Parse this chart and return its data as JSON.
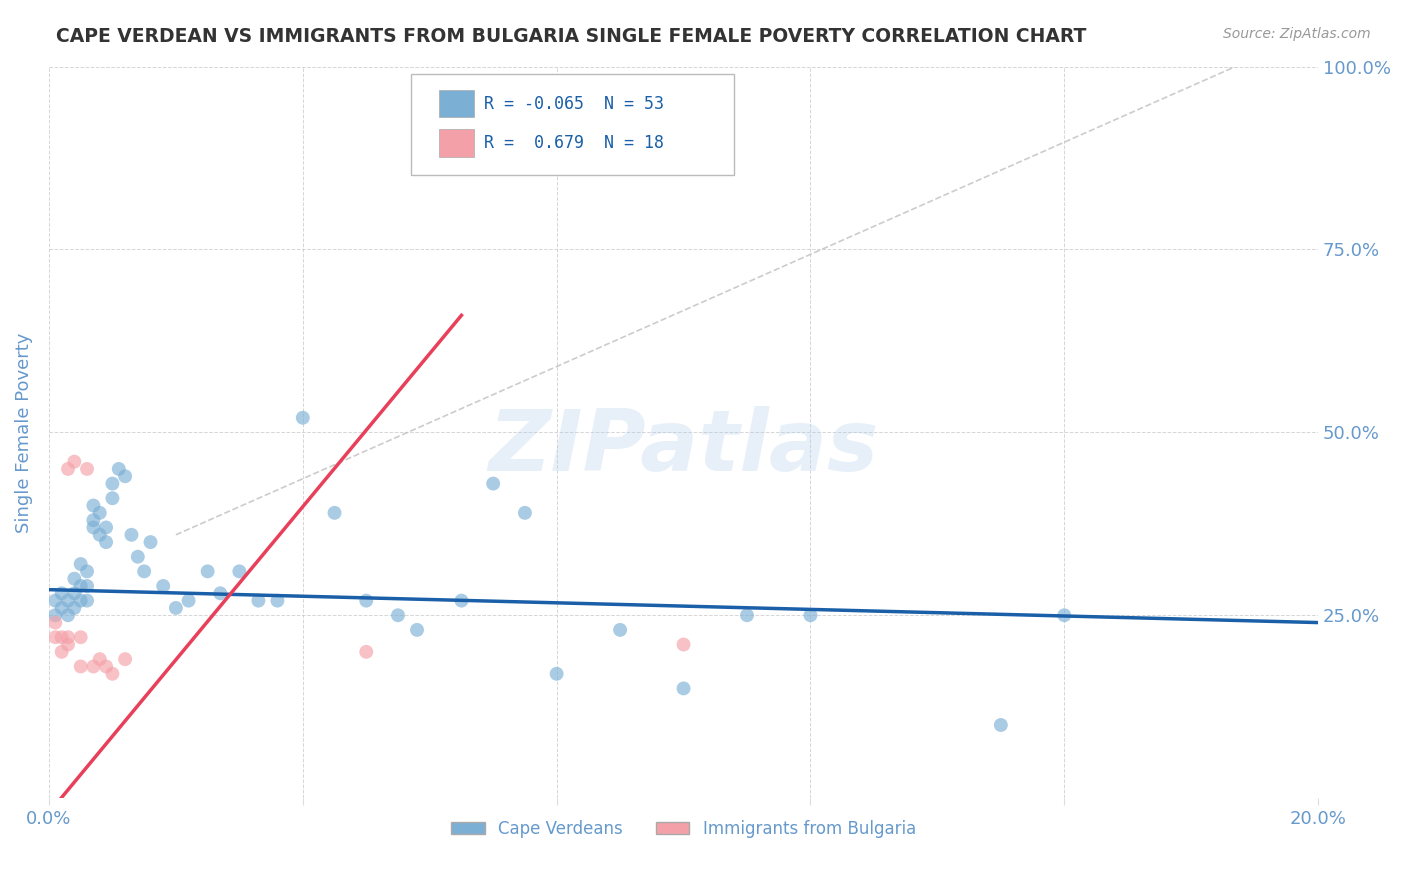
{
  "title": "CAPE VERDEAN VS IMMIGRANTS FROM BULGARIA SINGLE FEMALE POVERTY CORRELATION CHART",
  "source": "Source: ZipAtlas.com",
  "ylabel": "Single Female Poverty",
  "xlim": [
    0.0,
    0.2
  ],
  "ylim": [
    0.0,
    1.0
  ],
  "xtick_positions": [
    0.0,
    0.04,
    0.08,
    0.12,
    0.16,
    0.2
  ],
  "xtick_labels": [
    "0.0%",
    "",
    "",
    "",
    "",
    "20.0%"
  ],
  "yticks": [
    0.0,
    0.25,
    0.5,
    0.75,
    1.0
  ],
  "ytick_labels": [
    "",
    "25.0%",
    "50.0%",
    "75.0%",
    "100.0%"
  ],
  "blue_color": "#7BAFD4",
  "pink_color": "#F4A0A8",
  "blue_line_color": "#1A5FA8",
  "pink_line_color": "#E8405A",
  "R_blue": -0.065,
  "N_blue": 53,
  "R_pink": 0.679,
  "N_pink": 18,
  "blue_scatter_x": [
    0.001,
    0.001,
    0.002,
    0.002,
    0.003,
    0.003,
    0.004,
    0.004,
    0.004,
    0.005,
    0.005,
    0.005,
    0.006,
    0.006,
    0.006,
    0.007,
    0.007,
    0.007,
    0.008,
    0.008,
    0.009,
    0.009,
    0.01,
    0.01,
    0.011,
    0.012,
    0.013,
    0.014,
    0.015,
    0.016,
    0.018,
    0.02,
    0.022,
    0.025,
    0.027,
    0.03,
    0.033,
    0.036,
    0.04,
    0.045,
    0.05,
    0.055,
    0.058,
    0.065,
    0.07,
    0.075,
    0.08,
    0.09,
    0.1,
    0.11,
    0.12,
    0.15,
    0.16
  ],
  "blue_scatter_y": [
    0.27,
    0.25,
    0.26,
    0.28,
    0.25,
    0.27,
    0.26,
    0.28,
    0.3,
    0.27,
    0.29,
    0.32,
    0.27,
    0.29,
    0.31,
    0.37,
    0.38,
    0.4,
    0.36,
    0.39,
    0.35,
    0.37,
    0.41,
    0.43,
    0.45,
    0.44,
    0.36,
    0.33,
    0.31,
    0.35,
    0.29,
    0.26,
    0.27,
    0.31,
    0.28,
    0.31,
    0.27,
    0.27,
    0.52,
    0.39,
    0.27,
    0.25,
    0.23,
    0.27,
    0.43,
    0.39,
    0.17,
    0.23,
    0.15,
    0.25,
    0.25,
    0.1,
    0.25
  ],
  "pink_scatter_x": [
    0.001,
    0.001,
    0.002,
    0.002,
    0.003,
    0.003,
    0.003,
    0.004,
    0.005,
    0.005,
    0.006,
    0.007,
    0.008,
    0.009,
    0.01,
    0.012,
    0.05,
    0.1
  ],
  "pink_scatter_y": [
    0.22,
    0.24,
    0.2,
    0.22,
    0.21,
    0.22,
    0.45,
    0.46,
    0.22,
    0.18,
    0.45,
    0.18,
    0.19,
    0.18,
    0.17,
    0.19,
    0.2,
    0.21
  ],
  "watermark": "ZIPatlas",
  "background_color": "#FFFFFF",
  "grid_color": "#CCCCCC",
  "title_color": "#333333",
  "tick_color": "#6699CC"
}
